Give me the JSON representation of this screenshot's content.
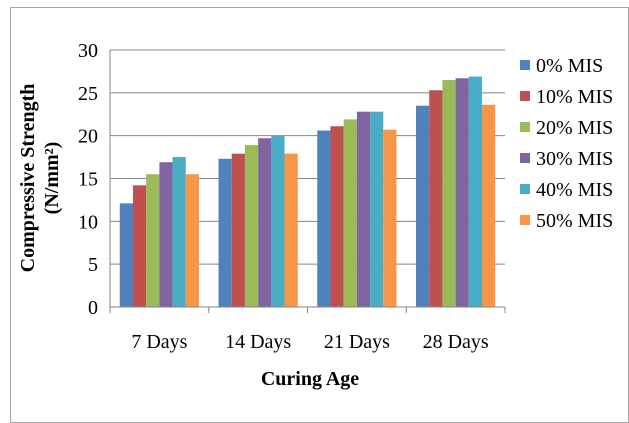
{
  "chart_data": {
    "type": "bar",
    "categories": [
      "7 Days",
      "14 Days",
      "21 Days",
      "28 Days"
    ],
    "series": [
      {
        "name": "0% MIS",
        "color": "#4f81bd",
        "values": [
          12.1,
          17.3,
          20.6,
          23.5
        ]
      },
      {
        "name": "10% MIS",
        "color": "#c0504d",
        "values": [
          14.2,
          17.9,
          21.1,
          25.3
        ]
      },
      {
        "name": "20% MIS",
        "color": "#9bbb59",
        "values": [
          15.5,
          18.9,
          21.9,
          26.5
        ]
      },
      {
        "name": "30% MIS",
        "color": "#8064a2",
        "values": [
          16.9,
          19.7,
          22.8,
          26.7
        ]
      },
      {
        "name": "40% MIS",
        "color": "#4bacc6",
        "values": [
          17.5,
          20.0,
          22.8,
          26.9
        ]
      },
      {
        "name": "50% MIS",
        "color": "#f79646",
        "values": [
          15.5,
          17.9,
          20.7,
          23.6
        ]
      }
    ],
    "xlabel": "Curing Age",
    "ylabel": "Compressive Strength",
    "ylabel_unit": "(N/mm²)",
    "ylim": [
      0,
      30
    ],
    "yticks": [
      0,
      5,
      10,
      15,
      20,
      25,
      30
    ],
    "grid": true,
    "legend_position": "right"
  }
}
